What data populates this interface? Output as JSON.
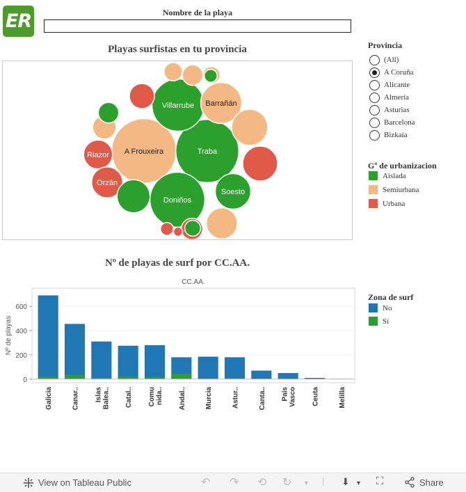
{
  "logo": {
    "text": "ER",
    "color": "#4e9a2a"
  },
  "search": {
    "label": "Nombre de la playa",
    "value": ""
  },
  "bubble_chart": {
    "title": "Playas surfistas en tu provincia",
    "colors": {
      "Aislada": "#2ca02c",
      "Semiurbana": "#f4b884",
      "Urbana": "#e05a4a"
    }
  },
  "bar_chart_title": "Nº de playas de surf por CC.AA.",
  "province_filter": {
    "title": "Provincia",
    "options": [
      "(All)",
      "A Coruña",
      "Alicante",
      "Almería",
      "Asturias",
      "Barcelona",
      "Bizkaia"
    ],
    "selected": "A Coruña"
  },
  "urbanization_legend": {
    "title": "Gº de urbanizacion",
    "items": [
      {
        "label": "Aislada",
        "color": "#2ca02c"
      },
      {
        "label": "Semiurbana",
        "color": "#f4b884"
      },
      {
        "label": "Urbana",
        "color": "#e05a4a"
      }
    ]
  },
  "surf_legend": {
    "title": "Zona de surf",
    "items": [
      {
        "label": "No",
        "color": "#1f77b4"
      },
      {
        "label": "Sí",
        "color": "#2ca02c"
      }
    ]
  },
  "chart_data": [
    {
      "type": "bubble",
      "title": "Playas surfistas en tu provincia",
      "bubbles": [
        {
          "label": "A Frouxeira",
          "category": "Semiurbana",
          "size": 100
        },
        {
          "label": "Traba",
          "category": "Aislada",
          "size": 95
        },
        {
          "label": "Doniños",
          "category": "Aislada",
          "size": 72
        },
        {
          "label": "Villarrube",
          "category": "Aislada",
          "size": 65
        },
        {
          "label": "Barrañán",
          "category": "Semiurbana",
          "size": 40
        },
        {
          "label": "Soesto",
          "category": "Aislada",
          "size": 30
        },
        {
          "label": "Riazor",
          "category": "Urbana",
          "size": 20
        },
        {
          "label": "Orzán",
          "category": "Urbana",
          "size": 23
        },
        {
          "label": "",
          "category": "Semiurbana",
          "size": 31
        },
        {
          "label": "",
          "category": "Urbana",
          "size": 29
        },
        {
          "label": "",
          "category": "Semiurbana",
          "size": 13
        },
        {
          "label": "",
          "category": "Urbana",
          "size": 15
        },
        {
          "label": "",
          "category": "Urbana",
          "size": 11
        },
        {
          "label": "",
          "category": "Aislada",
          "size": 10
        },
        {
          "label": "",
          "category": "Aislada",
          "size": 26
        },
        {
          "label": "",
          "category": "Semiurbana",
          "size": 8
        },
        {
          "label": "",
          "category": "Semiurbana",
          "size": 7
        },
        {
          "label": "",
          "category": "Aislada",
          "size": 6
        },
        {
          "label": "",
          "category": "Semiurbana",
          "size": 10
        },
        {
          "label": "",
          "category": "Semiurbana",
          "size": 23
        },
        {
          "label": "",
          "category": "Aislada",
          "size": 4
        },
        {
          "label": "",
          "category": "Urbana",
          "size": 4
        },
        {
          "label": "",
          "category": "Urbana",
          "size": 2
        }
      ]
    },
    {
      "type": "bar",
      "title": "Nº de playas de surf por CC.AA.",
      "header": "CC.AA.",
      "xlabel": "",
      "ylabel": "Nº de playas",
      "ylim": [
        -30,
        750
      ],
      "yticks": [
        0,
        200,
        400,
        600
      ],
      "stacked": true,
      "categories": [
        "Galicia",
        "Canar..",
        "Islas Balea..",
        "Catal..",
        "Comu nida..",
        "Andal..",
        "Murcia",
        "Astur..",
        "Canta..",
        "País Vasco",
        "Ceuta",
        "Melilla"
      ],
      "category_lines": [
        [
          "Galicia"
        ],
        [
          "Canar.."
        ],
        [
          "Islas",
          "Balea.."
        ],
        [
          "Catal.."
        ],
        [
          "Comu",
          "nida.."
        ],
        [
          "Andal.."
        ],
        [
          "Murcia"
        ],
        [
          "Astur.."
        ],
        [
          "Canta.."
        ],
        [
          "País",
          "Vasco"
        ],
        [
          "Ceuta"
        ],
        [
          "Melilla"
        ]
      ],
      "series": [
        {
          "name": "No",
          "color": "#1f77b4",
          "values": [
            690,
            455,
            310,
            275,
            280,
            180,
            185,
            180,
            70,
            50,
            10,
            3
          ]
        },
        {
          "name": "Sí",
          "color": "#2ca02c",
          "values": [
            20,
            35,
            10,
            20,
            15,
            45,
            5,
            10,
            5,
            2,
            0,
            0
          ]
        }
      ]
    }
  ],
  "footer": {
    "view_label": "View on Tableau Public",
    "share_label": "Share"
  }
}
